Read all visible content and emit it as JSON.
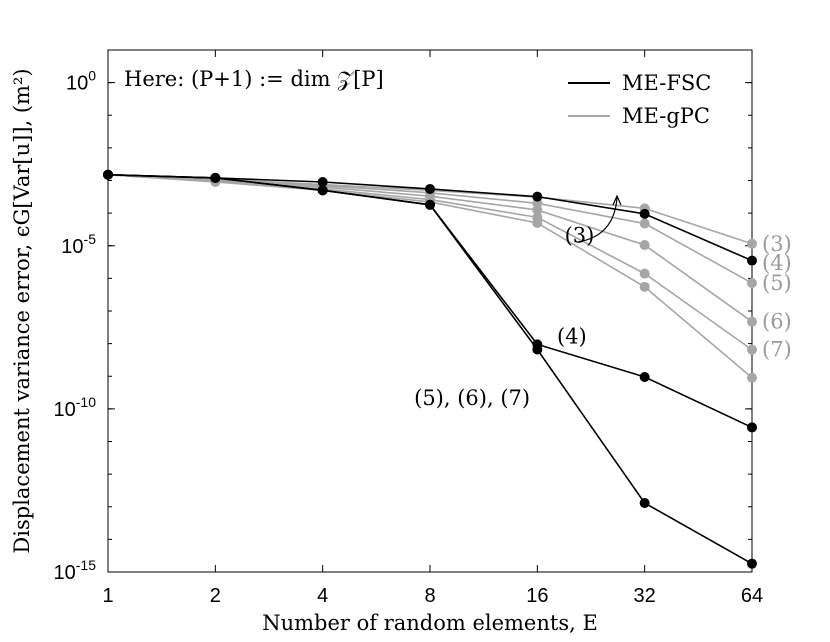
{
  "chart_data": {
    "type": "line",
    "ylabel": "Displacement variance error, ϵG[Var[u]], (m²)",
    "xlabel": "Number of random elements, E",
    "x_scale": "log2",
    "y_scale": "log10",
    "x": [
      1,
      2,
      4,
      8,
      16,
      32,
      64
    ],
    "x_ticks": [
      "1",
      "2",
      "4",
      "8",
      "16",
      "32",
      "64"
    ],
    "ylim": [
      1e-15,
      10.0
    ],
    "y_ticks": [
      {
        "value": 1.0,
        "base": "10",
        "exp": "0"
      },
      {
        "value": 1e-05,
        "base": "10",
        "exp": "-5"
      },
      {
        "value": 1e-10,
        "base": "10",
        "exp": "-10"
      },
      {
        "value": 1e-15,
        "base": "10",
        "exp": "-15"
      }
    ],
    "grid": false,
    "legend_position": "top-right",
    "legend": [
      {
        "label": "ME-FSC",
        "color": "#000000"
      },
      {
        "label": "ME-gPC",
        "color": "#a6a6a6"
      }
    ],
    "annotation_box": "Here: (P+1) := dim 𝒵[P]",
    "series": [
      {
        "group": "ME-gPC",
        "order": "(3)",
        "color": "#a6a6a6",
        "values": [
          0.0015,
          0.0011,
          0.00075,
          0.0005,
          0.00031,
          0.00014,
          1.15e-05
        ]
      },
      {
        "group": "ME-gPC",
        "order": "(4)",
        "color": "#a6a6a6",
        "values": [
          0.0015,
          0.0011,
          0.0007,
          0.00042,
          0.0002,
          4.8e-05,
          7.2e-07
        ]
      },
      {
        "group": "ME-gPC",
        "order": "(5)",
        "color": "#a6a6a6",
        "values": [
          0.0015,
          0.001,
          0.00063,
          0.00033,
          0.000125,
          1.05e-05,
          4.7e-08
        ]
      },
      {
        "group": "ME-gPC",
        "order": "(6)",
        "color": "#a6a6a6",
        "values": [
          0.0015,
          0.00095,
          0.00055,
          0.00026,
          7.4e-05,
          1.4e-06,
          6.5e-09
        ]
      },
      {
        "group": "ME-gPC",
        "order": "(7)",
        "color": "#a6a6a6",
        "values": [
          0.0015,
          0.0009,
          0.0005,
          0.00022,
          5e-05,
          5.5e-07,
          9e-10
        ]
      },
      {
        "group": "ME-FSC",
        "order": "(3)",
        "color": "#000000",
        "values": [
          0.0015,
          0.0012,
          0.0009,
          0.00055,
          0.00032,
          9.5e-05,
          3.5e-06
        ]
      },
      {
        "group": "ME-FSC",
        "order": "(4)",
        "color": "#000000",
        "values": [
          0.0015,
          0.0012,
          0.0005,
          0.00018,
          9.5e-09,
          9.5e-10,
          2.7e-11
        ]
      },
      {
        "group": "ME-FSC",
        "order": "(5), (6), (7)",
        "color": "#000000",
        "values": [
          0.0015,
          0.0012,
          0.0005,
          0.00018,
          6.6e-09,
          1.3e-13,
          1.8e-15
        ]
      }
    ],
    "annotations": [
      {
        "text": "(3)",
        "x": 21,
        "y": 1.25e-05
      },
      {
        "text": "(4)",
        "x": 20,
        "y": 1e-08
      },
      {
        "text": "(5), (6), (7)",
        "x": 10.5,
        "y": 1.3e-10
      }
    ],
    "right_labels": [
      {
        "text": "(3)",
        "y": 1.15e-05
      },
      {
        "text": "(4)",
        "y": 3e-06
      },
      {
        "text": "(5)",
        "y": 7.2e-07
      },
      {
        "text": "(6)",
        "y": 4.7e-08
      },
      {
        "text": "(7)",
        "y": 6.5e-09
      }
    ]
  }
}
